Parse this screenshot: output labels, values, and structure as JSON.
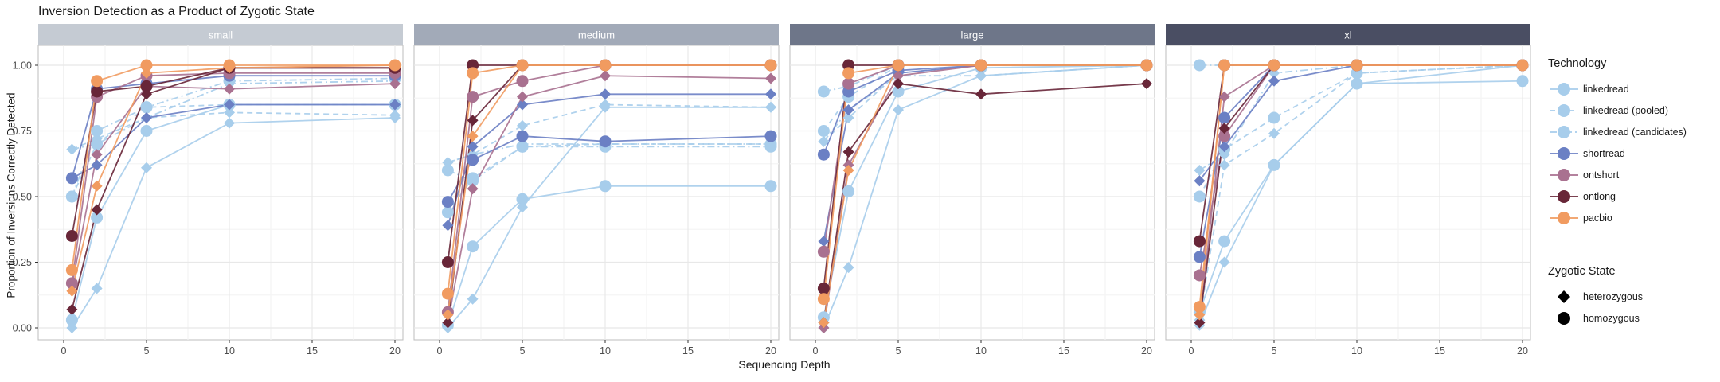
{
  "legend": {
    "technology_title": "Technology",
    "state_title": "Zygotic State"
  },
  "technologies": [
    {
      "label": "linkedread",
      "color": "#A7CDEB",
      "dash": ""
    },
    {
      "label": "linkedread (pooled)",
      "color": "#A7CDEB",
      "dash": "7,5"
    },
    {
      "label": "linkedread (candidates)",
      "color": "#A7CDEB",
      "dash": "9,4,2,4"
    },
    {
      "label": "shortread",
      "color": "#6B80C4",
      "dash": ""
    },
    {
      "label": "ontshort",
      "color": "#A97190",
      "dash": ""
    },
    {
      "label": "ontlong",
      "color": "#682638",
      "dash": ""
    },
    {
      "label": "pacbio",
      "color": "#F19B60",
      "dash": ""
    }
  ],
  "states": [
    {
      "label": "heterozygous",
      "marker": "diamond"
    },
    {
      "label": "homozygous",
      "marker": "circle"
    }
  ],
  "chart_data": {
    "type": "line",
    "title": "Inversion Detection as a Product of Zygotic State",
    "xlabel": "Sequencing Depth",
    "ylabel": "Proportion of Inversions Correctly Detected",
    "x": [
      0.5,
      2,
      5,
      10,
      20
    ],
    "x_ticks": [
      0,
      5,
      10,
      15,
      20
    ],
    "y_ticks": [
      "0.00",
      "0.25",
      "0.50",
      "0.75",
      "1.00"
    ],
    "y_tick_values": [
      0,
      0.25,
      0.5,
      0.75,
      1
    ],
    "xlim": [
      -1,
      21.3
    ],
    "ylim": [
      0,
      1
    ],
    "grid": "major+minor",
    "legend_position": "right",
    "facets": [
      {
        "label": "small",
        "strip_color": "#C5CBD3",
        "series": [
          {
            "tech": "linkedread",
            "state": "homozygous",
            "values": [
              0.03,
              0.42,
              0.75,
              0.85,
              0.85
            ]
          },
          {
            "tech": "linkedread",
            "state": "heterozygous",
            "values": [
              0.0,
              0.15,
              0.61,
              0.78,
              0.8
            ]
          },
          {
            "tech": "linkedread (pooled)",
            "state": "homozygous",
            "values": [
              0.5,
              0.7,
              0.84,
              0.85,
              0.85
            ]
          },
          {
            "tech": "linkedread (pooled)",
            "state": "heterozygous",
            "values": [
              0.68,
              0.72,
              0.8,
              0.82,
              0.81
            ]
          },
          {
            "tech": "linkedread (candidates)",
            "state": "homozygous",
            "values": [
              0.5,
              0.75,
              0.84,
              0.94,
              0.95
            ]
          },
          {
            "tech": "linkedread (candidates)",
            "state": "heterozygous",
            "values": [
              0.68,
              0.7,
              0.8,
              0.93,
              0.94
            ]
          },
          {
            "tech": "shortread",
            "state": "homozygous",
            "values": [
              0.57,
              0.91,
              0.93,
              0.96,
              0.96
            ]
          },
          {
            "tech": "shortread",
            "state": "heterozygous",
            "values": [
              0.57,
              0.62,
              0.8,
              0.85,
              0.85
            ]
          },
          {
            "tech": "ontshort",
            "state": "homozygous",
            "values": [
              0.17,
              0.88,
              0.96,
              0.97,
              0.97
            ]
          },
          {
            "tech": "ontshort",
            "state": "heterozygous",
            "values": [
              0.16,
              0.66,
              0.92,
              0.91,
              0.93
            ]
          },
          {
            "tech": "ontlong",
            "state": "homozygous",
            "values": [
              0.35,
              0.9,
              0.92,
              0.99,
              0.99
            ]
          },
          {
            "tech": "ontlong",
            "state": "heterozygous",
            "values": [
              0.07,
              0.45,
              0.89,
              0.99,
              0.99
            ]
          },
          {
            "tech": "pacbio",
            "state": "homozygous",
            "values": [
              0.22,
              0.94,
              1.0,
              1.0,
              1.0
            ]
          },
          {
            "tech": "pacbio",
            "state": "heterozygous",
            "values": [
              0.14,
              0.54,
              0.97,
              0.99,
              1.0
            ]
          }
        ]
      },
      {
        "label": "medium",
        "strip_color": "#A2AAB8",
        "series": [
          {
            "tech": "linkedread",
            "state": "homozygous",
            "values": [
              0.01,
              0.31,
              0.49,
              0.54,
              0.54
            ]
          },
          {
            "tech": "linkedread",
            "state": "heterozygous",
            "values": [
              0.0,
              0.11,
              0.46,
              0.84,
              0.84
            ]
          },
          {
            "tech": "linkedread (pooled)",
            "state": "homozygous",
            "values": [
              0.44,
              0.57,
              0.69,
              0.7,
              0.7
            ]
          },
          {
            "tech": "linkedread (pooled)",
            "state": "heterozygous",
            "values": [
              0.63,
              0.66,
              0.77,
              0.85,
              0.84
            ]
          },
          {
            "tech": "linkedread (candidates)",
            "state": "homozygous",
            "values": [
              0.6,
              0.56,
              0.69,
              0.69,
              0.69
            ]
          },
          {
            "tech": "linkedread (candidates)",
            "state": "heterozygous",
            "values": [
              0.63,
              0.66,
              0.7,
              0.7,
              0.7
            ]
          },
          {
            "tech": "shortread",
            "state": "homozygous",
            "values": [
              0.48,
              0.64,
              0.73,
              0.71,
              0.73
            ]
          },
          {
            "tech": "shortread",
            "state": "heterozygous",
            "values": [
              0.39,
              0.69,
              0.85,
              0.89,
              0.89
            ]
          },
          {
            "tech": "ontshort",
            "state": "homozygous",
            "values": [
              0.06,
              0.88,
              0.94,
              1.0,
              1.0
            ]
          },
          {
            "tech": "ontshort",
            "state": "heterozygous",
            "values": [
              0.02,
              0.53,
              0.88,
              0.96,
              0.95
            ]
          },
          {
            "tech": "ontlong",
            "state": "homozygous",
            "values": [
              0.25,
              1.0,
              1.0,
              1.0,
              1.0
            ]
          },
          {
            "tech": "ontlong",
            "state": "heterozygous",
            "values": [
              0.02,
              0.79,
              1.0,
              1.0,
              1.0
            ]
          },
          {
            "tech": "pacbio",
            "state": "homozygous",
            "values": [
              0.13,
              0.97,
              1.0,
              1.0,
              1.0
            ]
          },
          {
            "tech": "pacbio",
            "state": "heterozygous",
            "values": [
              0.05,
              0.73,
              1.0,
              1.0,
              1.0
            ]
          }
        ]
      },
      {
        "label": "large",
        "strip_color": "#6E7689",
        "series": [
          {
            "tech": "linkedread",
            "state": "homozygous",
            "values": [
              0.04,
              0.52,
              0.9,
              0.99,
              1.0
            ]
          },
          {
            "tech": "linkedread",
            "state": "heterozygous",
            "values": [
              0.0,
              0.23,
              0.83,
              0.96,
              1.0
            ]
          },
          {
            "tech": "linkedread (pooled)",
            "state": "homozygous",
            "values": [
              0.75,
              0.88,
              1.0,
              1.0,
              1.0
            ]
          },
          {
            "tech": "linkedread (pooled)",
            "state": "heterozygous",
            "values": [
              0.71,
              0.8,
              0.97,
              1.0,
              1.0
            ]
          },
          {
            "tech": "linkedread (candidates)",
            "state": "homozygous",
            "values": [
              0.9,
              0.92,
              1.0,
              1.0,
              1.0
            ]
          },
          {
            "tech": "linkedread (candidates)",
            "state": "heterozygous",
            "values": [
              0.71,
              0.83,
              0.96,
              0.96,
              1.0
            ]
          },
          {
            "tech": "shortread",
            "state": "homozygous",
            "values": [
              0.66,
              0.9,
              0.98,
              1.0,
              1.0
            ]
          },
          {
            "tech": "shortread",
            "state": "heterozygous",
            "values": [
              0.33,
              0.83,
              0.97,
              1.0,
              1.0
            ]
          },
          {
            "tech": "ontshort",
            "state": "homozygous",
            "values": [
              0.29,
              0.93,
              1.0,
              1.0,
              1.0
            ]
          },
          {
            "tech": "ontshort",
            "state": "heterozygous",
            "values": [
              0.0,
              0.62,
              0.96,
              1.0,
              1.0
            ]
          },
          {
            "tech": "ontlong",
            "state": "homozygous",
            "values": [
              0.15,
              1.0,
              1.0,
              1.0,
              1.0
            ]
          },
          {
            "tech": "ontlong",
            "state": "heterozygous",
            "values": [
              0.02,
              0.67,
              0.93,
              0.89,
              0.93
            ]
          },
          {
            "tech": "pacbio",
            "state": "homozygous",
            "values": [
              0.11,
              0.97,
              1.0,
              1.0,
              1.0
            ]
          },
          {
            "tech": "pacbio",
            "state": "heterozygous",
            "values": [
              0.02,
              0.6,
              1.0,
              1.0,
              1.0
            ]
          }
        ]
      },
      {
        "label": "xl",
        "strip_color": "#4A4E63",
        "series": [
          {
            "tech": "linkedread",
            "state": "homozygous",
            "values": [
              0.06,
              0.33,
              0.62,
              0.93,
              0.94
            ]
          },
          {
            "tech": "linkedread",
            "state": "heterozygous",
            "values": [
              0.01,
              0.25,
              0.62,
              0.93,
              1.0
            ]
          },
          {
            "tech": "linkedread (pooled)",
            "state": "homozygous",
            "values": [
              0.5,
              0.68,
              0.8,
              0.97,
              1.0
            ]
          },
          {
            "tech": "linkedread (pooled)",
            "state": "heterozygous",
            "values": [
              0.03,
              0.62,
              0.74,
              0.97,
              1.0
            ]
          },
          {
            "tech": "linkedread (candidates)",
            "state": "homozygous",
            "values": [
              1.0,
              1.0,
              1.0,
              1.0,
              1.0
            ]
          },
          {
            "tech": "linkedread (candidates)",
            "state": "heterozygous",
            "values": [
              0.6,
              0.66,
              0.97,
              1.0,
              1.0
            ]
          },
          {
            "tech": "shortread",
            "state": "homozygous",
            "values": [
              0.27,
              0.8,
              1.0,
              1.0,
              1.0
            ]
          },
          {
            "tech": "shortread",
            "state": "heterozygous",
            "values": [
              0.56,
              0.69,
              0.94,
              1.0,
              1.0
            ]
          },
          {
            "tech": "ontshort",
            "state": "homozygous",
            "values": [
              0.2,
              0.73,
              1.0,
              1.0,
              1.0
            ]
          },
          {
            "tech": "ontshort",
            "state": "heterozygous",
            "values": [
              0.02,
              0.88,
              1.0,
              1.0,
              1.0
            ]
          },
          {
            "tech": "ontlong",
            "state": "homozygous",
            "values": [
              0.33,
              1.0,
              1.0,
              1.0,
              1.0
            ]
          },
          {
            "tech": "ontlong",
            "state": "heterozygous",
            "values": [
              0.02,
              0.76,
              1.0,
              1.0,
              1.0
            ]
          },
          {
            "tech": "pacbio",
            "state": "homozygous",
            "values": [
              0.08,
              1.0,
              1.0,
              1.0,
              1.0
            ]
          },
          {
            "tech": "pacbio",
            "state": "heterozygous",
            "values": [
              0.05,
              1.0,
              1.0,
              1.0,
              1.0
            ]
          }
        ]
      }
    ],
    "style": {
      "strip_text_color": "#FFFFFF",
      "tick_label_color": "#4D4D4D",
      "panel_border_color": "#BDBDBD",
      "grid_major_color": "#E8E8E8",
      "grid_minor_color": "#F4F4F4",
      "marker_black": "#000000"
    }
  }
}
